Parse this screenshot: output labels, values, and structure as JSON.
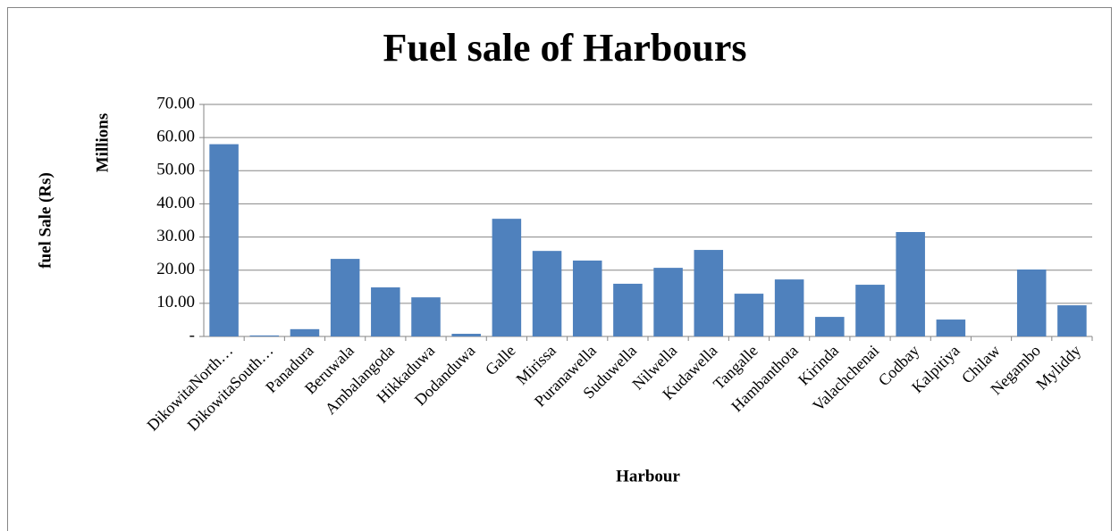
{
  "chart_data": {
    "type": "bar",
    "title": "Fuel sale of Harbours",
    "y_label": "fuel Sale (Rs)",
    "y_unit_label": "Millions",
    "x_label": "Harbour",
    "categories": [
      "DikowitaNorth…",
      "DikowitaSouth…",
      "Panadura",
      "Beruwala",
      "Ambalangoda",
      "Hikkaduwa",
      "Dodanduwa",
      "Galle",
      "Mirissa",
      "Puranawella",
      "Suduwella",
      "Nilwella",
      "Kudawella",
      "Tangalle",
      "Hambanthota",
      "Kirinda",
      "Valachchenai",
      "Codbay",
      "Kalpitiya",
      "Chilaw",
      "Negambo",
      "Myliddy"
    ],
    "values": [
      58,
      0.3,
      2.2,
      23.4,
      14.8,
      11.8,
      0.8,
      35.5,
      25.8,
      22.9,
      15.9,
      20.7,
      26.1,
      12.9,
      17.2,
      5.9,
      15.6,
      31.5,
      5.1,
      0,
      20.2,
      9.4
    ],
    "color": "#4f81bd",
    "ylim": [
      0,
      70
    ],
    "yticks": [
      {
        "value": 0,
        "label": "-"
      },
      {
        "value": 10,
        "label": "10.00"
      },
      {
        "value": 20,
        "label": "20.00"
      },
      {
        "value": 30,
        "label": "30.00"
      },
      {
        "value": 40,
        "label": "40.00"
      },
      {
        "value": 50,
        "label": "50.00"
      },
      {
        "value": 60,
        "label": "60.00"
      },
      {
        "value": 70,
        "label": "70.00"
      }
    ],
    "grid": true
  }
}
